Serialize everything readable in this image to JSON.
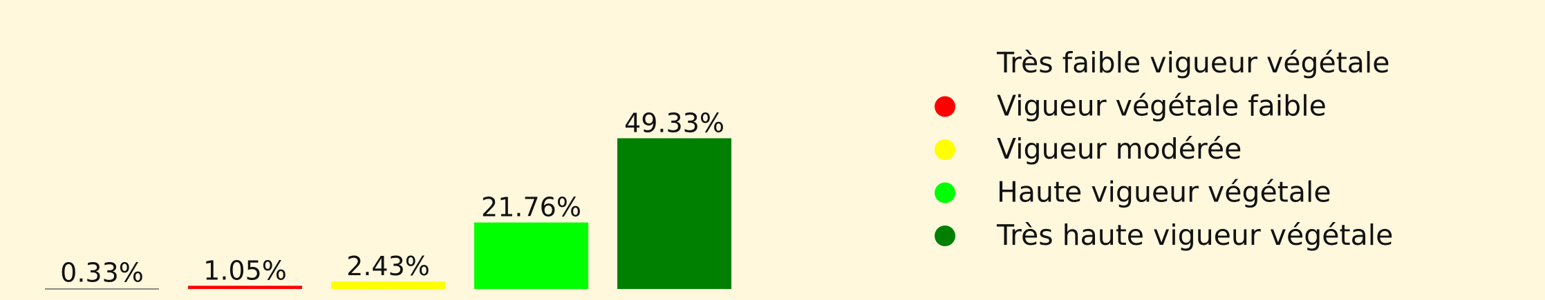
{
  "chart_data": {
    "type": "bar",
    "title": "",
    "xlabel": "",
    "ylabel": "",
    "ylim": [
      0,
      50
    ],
    "grid": false,
    "legend_position": "right",
    "categories": [
      "Très faible vigueur végétale",
      "Vigueur végétale faible",
      "Vigueur modérée",
      "Haute vigueur végétale",
      "Très haute vigueur végétale"
    ],
    "values": [
      0.33,
      1.05,
      2.43,
      21.76,
      49.33
    ],
    "data_labels": [
      "0.33%",
      "1.05%",
      "2.43%",
      "21.76%",
      "49.33%"
    ],
    "colors": [
      "#FFF8DC",
      "#FF0000",
      "#FFFF00",
      "#00FF00",
      "#008000"
    ]
  },
  "legend": {
    "items": [
      {
        "label": "Très faible vigueur végétale",
        "color": "#FFF8DC"
      },
      {
        "label": "Vigueur végétale faible",
        "color": "#FF0000"
      },
      {
        "label": "Vigueur modérée",
        "color": "#FFFF00"
      },
      {
        "label": "Haute vigueur végétale",
        "color": "#00FF00"
      },
      {
        "label": "Très haute vigueur végétale",
        "color": "#008000"
      }
    ]
  },
  "colors": {
    "background": "#FFF8DC",
    "text": "#111111"
  }
}
